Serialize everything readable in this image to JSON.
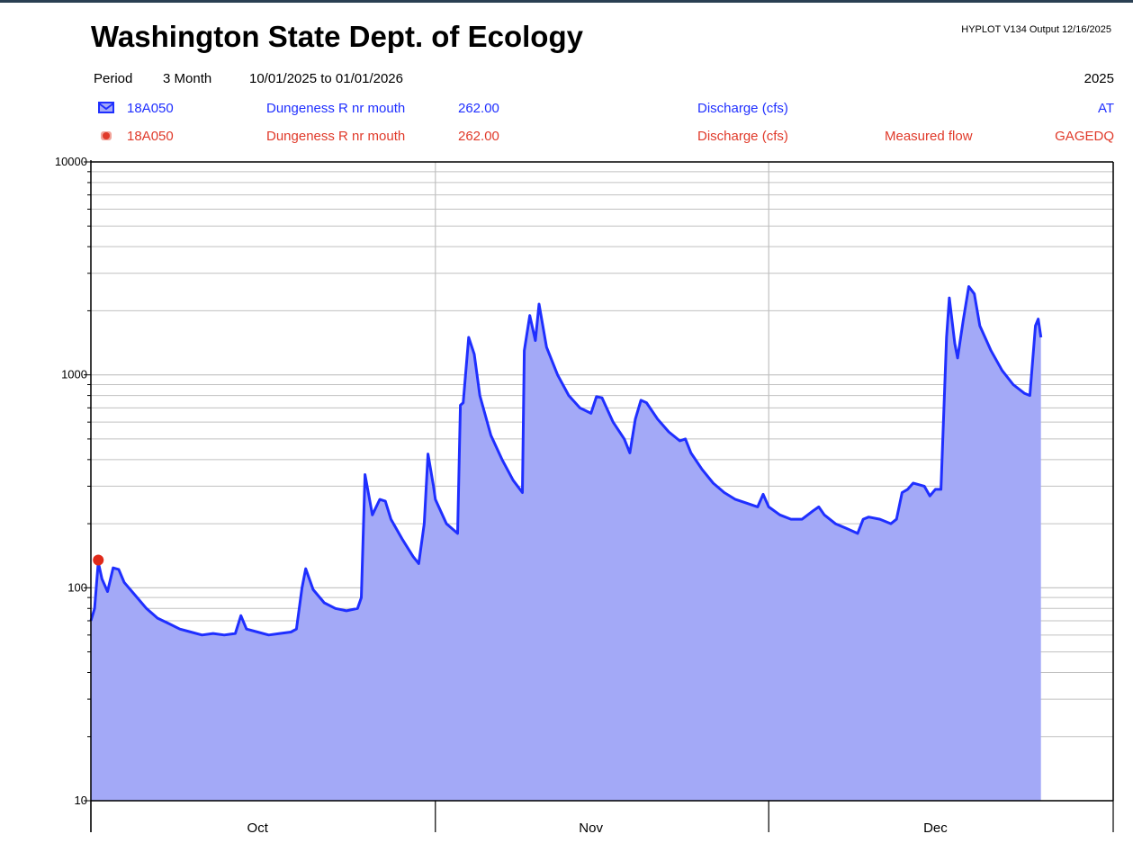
{
  "header": {
    "title": "Washington State Dept. of Ecology",
    "stamp": "HYPLOT V134  Output 12/16/2025",
    "period_label": "Period",
    "period_value": "3 Month",
    "date_range": "10/01/2025  to  01/01/2026",
    "year": "2025"
  },
  "legend": [
    {
      "icon": "line-series-icon",
      "site": "18A050",
      "name": "Dungeness R nr mouth",
      "value": "262.00",
      "param": "Discharge (cfs)",
      "note": "",
      "code": "AT",
      "color": "#1f2fff"
    },
    {
      "icon": "point-series-icon",
      "site": "18A050",
      "name": "Dungeness R nr mouth",
      "value": "262.00",
      "param": "Discharge (cfs)",
      "note": "Measured flow",
      "code": "GAGEDQ",
      "color": "#e03a2a"
    }
  ],
  "colors": {
    "line": "#1f2fff",
    "fill": "#a3a9f7",
    "point": "#e02a1a",
    "grid": "#c0c0c0"
  },
  "chart_data": {
    "type": "area",
    "yscale": "log",
    "ylim": [
      10,
      10000
    ],
    "y_ticks": [
      {
        "value": 10,
        "label": "10"
      },
      {
        "value": 100,
        "label": "100"
      },
      {
        "value": 1000,
        "label": "1000"
      },
      {
        "value": 10000,
        "label": "10000"
      }
    ],
    "xlim": [
      "2025-10-01",
      "2026-01-01"
    ],
    "x_month_boundaries": [
      "2025-10-01",
      "2025-11-01",
      "2025-12-01",
      "2026-01-01"
    ],
    "x_month_labels": [
      {
        "label": "Oct",
        "at": "2025-10-16"
      },
      {
        "label": "Nov",
        "at": "2025-11-15"
      },
      {
        "label": "Dec",
        "at": "2025-12-16"
      }
    ],
    "grid": true,
    "series": [
      {
        "name": "Dungeness R nr mouth Discharge (cfs)",
        "kind": "line",
        "points": [
          [
            "2025-10-01",
            70
          ],
          [
            "2025-10-01T08",
            80
          ],
          [
            "2025-10-01T16",
            132
          ],
          [
            "2025-10-02",
            110
          ],
          [
            "2025-10-02T12",
            96
          ],
          [
            "2025-10-03",
            124
          ],
          [
            "2025-10-03T12",
            122
          ],
          [
            "2025-10-04",
            106
          ],
          [
            "2025-10-05",
            92
          ],
          [
            "2025-10-06",
            80
          ],
          [
            "2025-10-07",
            72
          ],
          [
            "2025-10-08",
            68
          ],
          [
            "2025-10-09",
            64
          ],
          [
            "2025-10-10",
            62
          ],
          [
            "2025-10-11",
            60
          ],
          [
            "2025-10-12",
            61
          ],
          [
            "2025-10-13",
            60
          ],
          [
            "2025-10-14",
            61
          ],
          [
            "2025-10-14T12",
            74
          ],
          [
            "2025-10-15",
            64
          ],
          [
            "2025-10-16",
            62
          ],
          [
            "2025-10-17",
            60
          ],
          [
            "2025-10-18",
            61
          ],
          [
            "2025-10-19",
            62
          ],
          [
            "2025-10-19T12",
            64
          ],
          [
            "2025-10-20",
            100
          ],
          [
            "2025-10-20T08",
            123
          ],
          [
            "2025-10-21",
            98
          ],
          [
            "2025-10-22",
            85
          ],
          [
            "2025-10-23",
            80
          ],
          [
            "2025-10-24",
            78
          ],
          [
            "2025-10-25",
            80
          ],
          [
            "2025-10-25T08",
            90
          ],
          [
            "2025-10-25T16",
            340
          ],
          [
            "2025-10-26T08",
            220
          ],
          [
            "2025-10-27",
            260
          ],
          [
            "2025-10-27T12",
            255
          ],
          [
            "2025-10-28",
            210
          ],
          [
            "2025-10-29",
            170
          ],
          [
            "2025-10-30",
            140
          ],
          [
            "2025-10-30T12",
            130
          ],
          [
            "2025-10-31",
            200
          ],
          [
            "2025-10-31T08",
            425
          ],
          [
            "2025-10-31T20",
            300
          ],
          [
            "2025-11-01",
            260
          ],
          [
            "2025-11-02",
            200
          ],
          [
            "2025-11-03",
            180
          ],
          [
            "2025-11-03T06",
            720
          ],
          [
            "2025-11-03T12",
            740
          ],
          [
            "2025-11-04",
            1500
          ],
          [
            "2025-11-04T12",
            1250
          ],
          [
            "2025-11-05",
            800
          ],
          [
            "2025-11-06",
            520
          ],
          [
            "2025-11-07",
            400
          ],
          [
            "2025-11-08",
            320
          ],
          [
            "2025-11-08T20",
            280
          ],
          [
            "2025-11-09",
            1300
          ],
          [
            "2025-11-09T12",
            1900
          ],
          [
            "2025-11-10",
            1450
          ],
          [
            "2025-11-10T08",
            2150
          ],
          [
            "2025-11-11",
            1350
          ],
          [
            "2025-11-12",
            1000
          ],
          [
            "2025-11-13",
            800
          ],
          [
            "2025-11-14",
            700
          ],
          [
            "2025-11-15",
            660
          ],
          [
            "2025-11-15T12",
            790
          ],
          [
            "2025-11-16",
            780
          ],
          [
            "2025-11-17",
            600
          ],
          [
            "2025-11-18",
            500
          ],
          [
            "2025-11-18T12",
            430
          ],
          [
            "2025-11-19",
            620
          ],
          [
            "2025-11-19T12",
            760
          ],
          [
            "2025-11-20",
            740
          ],
          [
            "2025-11-21",
            620
          ],
          [
            "2025-11-22",
            540
          ],
          [
            "2025-11-23",
            490
          ],
          [
            "2025-11-23T12",
            500
          ],
          [
            "2025-11-24",
            430
          ],
          [
            "2025-11-25",
            360
          ],
          [
            "2025-11-26",
            310
          ],
          [
            "2025-11-27",
            280
          ],
          [
            "2025-11-28",
            260
          ],
          [
            "2025-11-29",
            250
          ],
          [
            "2025-11-30",
            240
          ],
          [
            "2025-11-30T12",
            275
          ],
          [
            "2025-12-01",
            240
          ],
          [
            "2025-12-02",
            220
          ],
          [
            "2025-12-03",
            210
          ],
          [
            "2025-12-04",
            210
          ],
          [
            "2025-12-05",
            230
          ],
          [
            "2025-12-05T12",
            240
          ],
          [
            "2025-12-06",
            220
          ],
          [
            "2025-12-07",
            200
          ],
          [
            "2025-12-08",
            190
          ],
          [
            "2025-12-09",
            180
          ],
          [
            "2025-12-09T12",
            210
          ],
          [
            "2025-12-10",
            215
          ],
          [
            "2025-12-11",
            210
          ],
          [
            "2025-12-12",
            200
          ],
          [
            "2025-12-12T12",
            210
          ],
          [
            "2025-12-13",
            280
          ],
          [
            "2025-12-13T12",
            290
          ],
          [
            "2025-12-14",
            310
          ],
          [
            "2025-12-15",
            300
          ],
          [
            "2025-12-15T12",
            270
          ],
          [
            "2025-12-16",
            290
          ],
          [
            "2025-12-16T12",
            290
          ],
          [
            "2025-12-17",
            1500
          ],
          [
            "2025-12-17T06",
            2300
          ],
          [
            "2025-12-17T18",
            1400
          ],
          [
            "2025-12-18",
            1200
          ],
          [
            "2025-12-18T12",
            1800
          ],
          [
            "2025-12-19",
            2600
          ],
          [
            "2025-12-19T12",
            2400
          ],
          [
            "2025-12-20",
            1700
          ],
          [
            "2025-12-21",
            1300
          ],
          [
            "2025-12-22",
            1050
          ],
          [
            "2025-12-23",
            900
          ],
          [
            "2025-12-24",
            820
          ],
          [
            "2025-12-24T12",
            800
          ],
          [
            "2025-12-25",
            1700
          ],
          [
            "2025-12-25T06",
            1830
          ],
          [
            "2025-12-25T12",
            1500
          ]
        ]
      },
      {
        "name": "Measured flow",
        "kind": "points",
        "points": [
          [
            "2025-10-01T16",
            135
          ]
        ]
      }
    ]
  }
}
